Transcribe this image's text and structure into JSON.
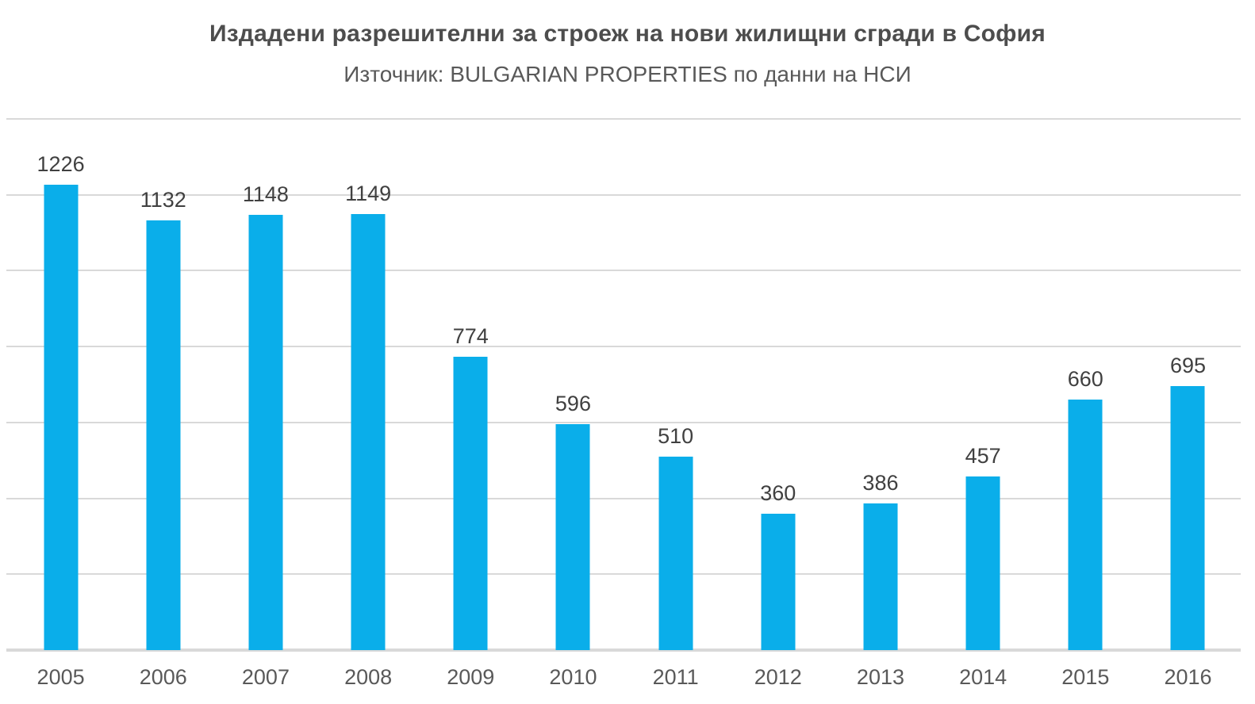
{
  "chart_data": {
    "type": "bar",
    "title": "Издадени разрешителни за строеж на нови жилищни сгради в София",
    "subtitle": "Източник: BULGARIAN PROPERTIES по данни на НСИ",
    "categories": [
      "2005",
      "2006",
      "2007",
      "2008",
      "2009",
      "2010",
      "2011",
      "2012",
      "2013",
      "2014",
      "2015",
      "2016"
    ],
    "values": [
      1226,
      1132,
      1148,
      1149,
      774,
      596,
      510,
      360,
      386,
      457,
      660,
      695
    ],
    "xlabel": "",
    "ylabel": "",
    "ylim": [
      0,
      1400
    ],
    "gridline_step": 200,
    "grid": true,
    "y_axis_tick_labels_visible": false,
    "legend_position": "none",
    "data_labels": true
  },
  "colors": {
    "background": "#ffffff",
    "bar": "#0aaeea",
    "gridline": "#d9d9d9",
    "baseline": "#d9d9d9",
    "title": "#4d4d4d",
    "subtitle": "#595959",
    "data_label": "#404040",
    "axis_label": "#595959"
  }
}
